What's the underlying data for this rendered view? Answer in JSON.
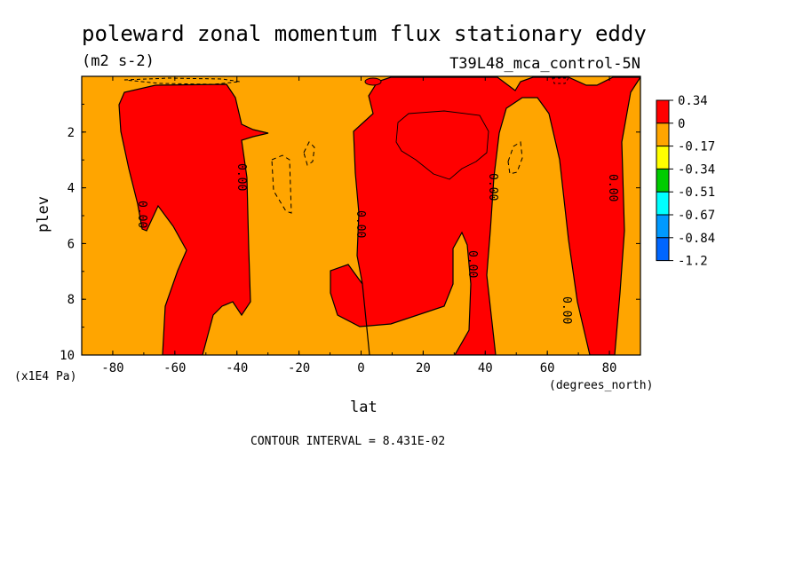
{
  "chart_data": {
    "type": "heatmap",
    "title": "poleward zonal momentum flux stationary eddy",
    "units": "(m2 s-2)",
    "run_label": "T39L48_mca_control-5N",
    "xlabel": "lat",
    "xunit": "(degrees_north)",
    "ylabel": "plev",
    "yunit": "(x1E4 Pa)",
    "xlim": [
      -90,
      90
    ],
    "ylim": [
      10,
      0
    ],
    "x_ticks": [
      "-80",
      "-60",
      "-40",
      "-20",
      "0",
      "20",
      "40",
      "60",
      "80"
    ],
    "y_ticks": [
      "2",
      "4",
      "6",
      "8",
      "10"
    ],
    "contour_interval": "CONTOUR INTERVAL = 8.431E-02",
    "zero_contour_label": "0.00",
    "colorbar": {
      "levels": [
        "0.34",
        "0",
        "-0.17",
        "-0.34",
        "-0.51",
        "-0.67",
        "-0.84",
        "-1.2"
      ],
      "colors": [
        "#ff0000",
        "#ffa500",
        "#ffff00",
        "#00cc00",
        "#00ffff",
        "#0099ff",
        "#0066ff"
      ]
    },
    "field_colors": {
      "positive": "#ff0000",
      "near_zero_negative": "#ffa500"
    },
    "series": [
      {
        "band": "0 to 0.34",
        "color": "#ff0000"
      },
      {
        "band": "-0.17 to 0",
        "color": "#ffa500"
      }
    ]
  }
}
